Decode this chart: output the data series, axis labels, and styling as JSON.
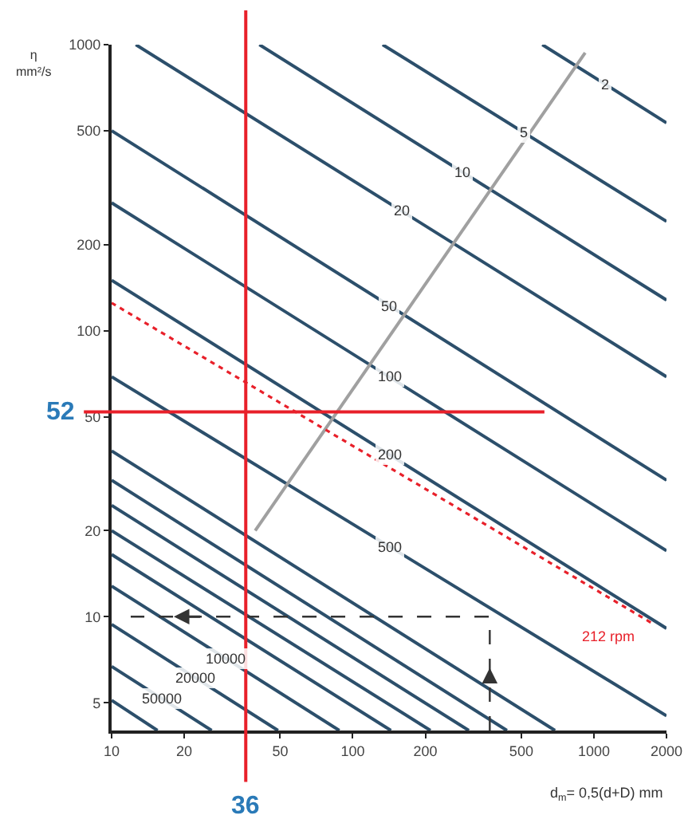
{
  "chart_data": {
    "type": "line",
    "log": "xy",
    "xlim": [
      10,
      2000
    ],
    "ylim": [
      4,
      1000
    ],
    "xticks": [
      10,
      20,
      50,
      100,
      200,
      500,
      1000,
      2000
    ],
    "yticks": [
      5,
      10,
      20,
      50,
      100,
      200,
      500,
      1000
    ],
    "xlabel": "d$_{m}$= 0,5(d+D) mm",
    "ylabel": "η mm²/s",
    "grid": false,
    "legend": false,
    "marker": "none",
    "line_style": "solid",
    "ref_lines": [
      {
        "axis": "x",
        "value": 36,
        "label": "36",
        "color": "#e8202a"
      },
      {
        "axis": "y",
        "value": 52,
        "label": "52",
        "color": "#e8202a"
      }
    ],
    "series": [
      {
        "name": "2",
        "color": "#2c4f6b",
        "x": [
          611,
          2000
        ],
        "values": [
          1000,
          533
        ]
      },
      {
        "name": "5",
        "color": "#2c4f6b",
        "x": [
          133,
          2000
        ],
        "values": [
          1000,
          241
        ]
      },
      {
        "name": "10",
        "color": "#2c4f6b",
        "x": [
          41,
          2000
        ],
        "values": [
          1000,
          128
        ]
      },
      {
        "name": "20",
        "color": "#2c4f6b",
        "x": [
          12.6,
          2000
        ],
        "values": [
          1000,
          69
        ]
      },
      {
        "name": "50",
        "color": "#2c4f6b",
        "x": [
          10,
          2000
        ],
        "values": [
          500,
          30
        ]
      },
      {
        "name": "100",
        "color": "#2c4f6b",
        "x": [
          10,
          2000
        ],
        "values": [
          280,
          17
        ]
      },
      {
        "name": "200",
        "color": "#2c4f6b",
        "x": [
          10,
          2000
        ],
        "values": [
          150,
          9.1
        ]
      },
      {
        "name": "500",
        "color": "#2c4f6b",
        "x": [
          10,
          2000
        ],
        "values": [
          69,
          4.5
        ]
      },
      {
        "color": "#2c4f6b",
        "x": [
          10,
          690
        ],
        "values": [
          38,
          4
        ]
      },
      {
        "color": "#2c4f6b",
        "x": [
          10,
          436
        ],
        "values": [
          30,
          4
        ]
      },
      {
        "color": "#2c4f6b",
        "x": [
          10,
          303
        ],
        "values": [
          24.5,
          4
        ]
      },
      {
        "color": "#2c4f6b",
        "x": [
          10,
          210
        ],
        "values": [
          20,
          4
        ]
      },
      {
        "color": "#2c4f6b",
        "x": [
          10,
          144
        ],
        "values": [
          16.5,
          4
        ]
      },
      {
        "name": "10000",
        "color": "#2c4f6b",
        "x": [
          10,
          88
        ],
        "values": [
          12.8,
          4
        ]
      },
      {
        "name": "20000",
        "color": "#2c4f6b",
        "x": [
          10,
          49
        ],
        "values": [
          9.4,
          4
        ]
      },
      {
        "name": "50000",
        "color": "#2c4f6b",
        "x": [
          10,
          26
        ],
        "values": [
          6.7,
          4
        ]
      },
      {
        "color": "#2c4f6b",
        "x": [
          10,
          15.5
        ],
        "values": [
          5.1,
          4
        ]
      },
      {
        "color": "#a0a0a0",
        "x": [
          39.4,
          920
        ],
        "values": [
          20,
          937
        ]
      },
      {
        "name": "212 rpm",
        "color": "#e8202a",
        "line_style": "dotted",
        "x": [
          10,
          1775
        ],
        "values": [
          125,
          9.4
        ]
      },
      {
        "color": "#333333",
        "line_style": "dashed",
        "x": [
          370,
          370,
          12
        ],
        "values": [
          4,
          10,
          10
        ]
      }
    ]
  }
}
